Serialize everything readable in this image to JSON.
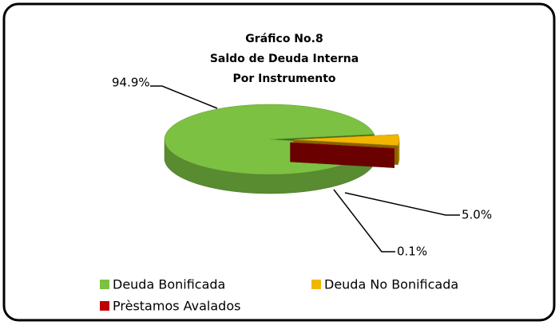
{
  "chart_data": {
    "type": "pie3d",
    "title": [
      "Gráfico No.8",
      "Saldo de Deuda Interna",
      "Por Instrumento"
    ],
    "categories": [
      "Deuda Bonificada",
      "Deuda No Bonificada",
      "Prèstamos Avalados"
    ],
    "values": [
      94.9,
      5.0,
      0.1
    ],
    "value_labels": [
      "94.9%",
      "5.0%",
      "0.1%"
    ],
    "colors": [
      "#7cc142",
      "#f2b600",
      "#c00000"
    ],
    "legend": "bottom"
  }
}
